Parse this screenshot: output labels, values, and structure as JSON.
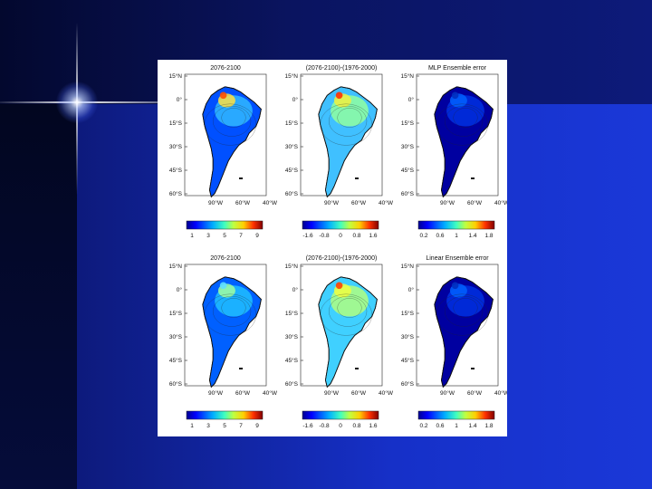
{
  "slide": {
    "background": "#1630c8",
    "accent": "#ffffff"
  },
  "figure": {
    "rows": [
      {
        "panels": [
          {
            "title": "2076-2100",
            "colorbar_ticks": [
              "1",
              "3",
              "5",
              "7",
              "9"
            ]
          },
          {
            "title": "(2076-2100)-(1976-2000)",
            "colorbar_ticks": [
              "-1.6",
              "-0.8",
              "0",
              "0.8",
              "1.6"
            ]
          },
          {
            "title": "MLP Ensemble error",
            "colorbar_ticks": [
              "0.2",
              "0.6",
              "1",
              "1.4",
              "1.8"
            ]
          }
        ]
      },
      {
        "panels": [
          {
            "title": "2076-2100",
            "colorbar_ticks": [
              "1",
              "3",
              "5",
              "7",
              "9"
            ]
          },
          {
            "title": "(2076-2100)-(1976-2000)",
            "colorbar_ticks": [
              "-1.6",
              "-0.8",
              "0",
              "0.8",
              "1.6"
            ]
          },
          {
            "title": "Linear Ensemble error",
            "colorbar_ticks": [
              "0.2",
              "0.6",
              "1",
              "1.4",
              "1.8"
            ]
          }
        ]
      }
    ],
    "lat_labels": [
      "15°N",
      "0°",
      "15°S",
      "30°S",
      "45°S",
      "60°S"
    ],
    "lon_labels": [
      "90°W",
      "60°W",
      "40°W"
    ],
    "colormap": [
      "#00008f",
      "#0000ff",
      "#0080ff",
      "#00ffff",
      "#80ff80",
      "#ffff00",
      "#ff8000",
      "#ff0000",
      "#800000"
    ]
  }
}
